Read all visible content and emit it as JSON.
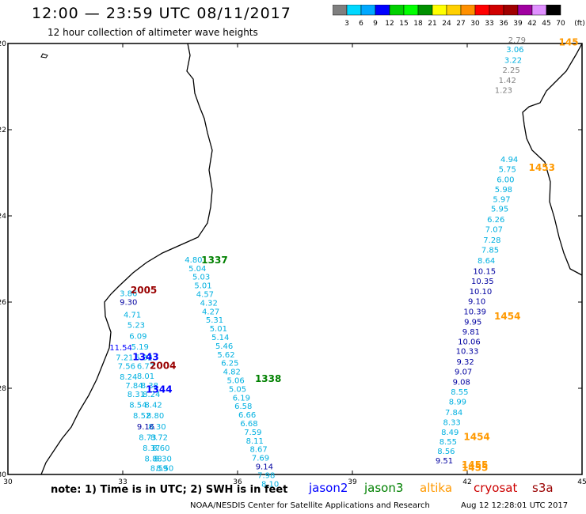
{
  "header": {
    "title": "12:00 — 23:59 UTC 08/11/2017",
    "subtitle": "12 hour collection of altimeter wave heights"
  },
  "colorbar": {
    "labels": [
      "3",
      "6",
      "9",
      "12",
      "15",
      "18",
      "21",
      "24",
      "27",
      "30",
      "33",
      "36",
      "39",
      "42",
      "45",
      "70"
    ],
    "unit": "(ft)",
    "colors": [
      "#7f7f7f",
      "#00d8ff",
      "#00a8ff",
      "#0000ff",
      "#00d000",
      "#00ff00",
      "#009000",
      "#ffff00",
      "#ffd000",
      "#ff9000",
      "#ff0000",
      "#d00000",
      "#a00000",
      "#a000a0",
      "#e090ff",
      "#000000"
    ]
  },
  "footer": {
    "note": "note: 1) Time is in UTC; 2) SWH is in feet",
    "legend": [
      {
        "name": "jason2",
        "color": "#0000ff"
      },
      {
        "name": "jason3",
        "color": "#008000"
      },
      {
        "name": "altika",
        "color": "#ff9900"
      },
      {
        "name": "cryosat",
        "color": "#cc0000"
      },
      {
        "name": "s3a",
        "color": "#990000"
      }
    ],
    "credit": "NOAA/NESDIS Center for Satellite Applications and Research",
    "stamp": "Aug 12 12:28:01 UTC 2017"
  },
  "chart_data": {
    "type": "scatter",
    "title": "12:00 — 23:59 UTC 08/11/2017",
    "xlim": [
      30,
      45
    ],
    "ylim": [
      -30,
      -20
    ],
    "xticks": [
      "30",
      "33",
      "36",
      "39",
      "42",
      "45"
    ],
    "yticks": [
      "-20",
      "-22",
      "-24",
      "-26",
      "-28",
      "-30"
    ],
    "track_labels": [
      {
        "text": "1337",
        "lon": 35.4,
        "lat": -25.1,
        "color": "#008000"
      },
      {
        "text": "1338",
        "lon": 36.8,
        "lat": -27.85,
        "color": "#008000"
      },
      {
        "text": "2005",
        "lon": 33.55,
        "lat": -25.8,
        "color": "#990000"
      },
      {
        "text": "2004",
        "lon": 34.05,
        "lat": -27.55,
        "color": "#990000"
      },
      {
        "text": "1343",
        "lon": 33.6,
        "lat": -27.35,
        "color": "#0000ff"
      },
      {
        "text": "1344",
        "lon": 33.95,
        "lat": -28.1,
        "color": "#0000ff"
      },
      {
        "text": "1453",
        "lon": 43.95,
        "lat": -22.95,
        "color": "#ff9900"
      },
      {
        "text": "1454",
        "lon": 43.05,
        "lat": -26.4,
        "color": "#ff9900"
      },
      {
        "text": "1454",
        "lon": 42.25,
        "lat": -29.2,
        "color": "#ff9900"
      },
      {
        "text": "1455",
        "lon": 42.2,
        "lat": -29.85,
        "color": "#ff9900"
      },
      {
        "text": "1455",
        "lon": 42.2,
        "lat": -29.92,
        "color": "#ff9900"
      },
      {
        "text": "145",
        "lon": 44.65,
        "lat": -20.05,
        "color": "#ff9900"
      }
    ],
    "series": [
      {
        "name": "jason3",
        "color": "#00b0e0",
        "points": [
          {
            "lon": 34.85,
            "lat": -25.08,
            "value": "4.80"
          },
          {
            "lon": 34.95,
            "lat": -25.28,
            "value": "5.04"
          },
          {
            "lon": 35.05,
            "lat": -25.48,
            "value": "5.03"
          },
          {
            "lon": 35.1,
            "lat": -25.68,
            "value": "5.01"
          },
          {
            "lon": 35.15,
            "lat": -25.88,
            "value": "4.57"
          },
          {
            "lon": 35.25,
            "lat": -26.08,
            "value": "4.32"
          },
          {
            "lon": 35.3,
            "lat": -26.28,
            "value": "4.27"
          },
          {
            "lon": 35.4,
            "lat": -26.48,
            "value": "5.31"
          },
          {
            "lon": 35.5,
            "lat": -26.68,
            "value": "5.01"
          },
          {
            "lon": 35.55,
            "lat": -26.88,
            "value": "5.14"
          },
          {
            "lon": 35.65,
            "lat": -27.08,
            "value": "5.46"
          },
          {
            "lon": 35.7,
            "lat": -27.28,
            "value": "5.62"
          },
          {
            "lon": 35.8,
            "lat": -27.48,
            "value": "6.25"
          },
          {
            "lon": 35.85,
            "lat": -27.68,
            "value": "4.82"
          },
          {
            "lon": 35.95,
            "lat": -27.88,
            "value": "5.06"
          },
          {
            "lon": 36.0,
            "lat": -28.08,
            "value": "5.05"
          },
          {
            "lon": 36.1,
            "lat": -28.28,
            "value": "6.19"
          },
          {
            "lon": 36.15,
            "lat": -28.48,
            "value": "6.58"
          },
          {
            "lon": 36.25,
            "lat": -28.68,
            "value": "6.66"
          },
          {
            "lon": 36.3,
            "lat": -28.88,
            "value": "6.68"
          },
          {
            "lon": 36.4,
            "lat": -29.08,
            "value": "7.59"
          },
          {
            "lon": 36.45,
            "lat": -29.28,
            "value": "8.11"
          },
          {
            "lon": 36.55,
            "lat": -29.48,
            "value": "8.67"
          },
          {
            "lon": 36.6,
            "lat": -29.68,
            "value": "7.69"
          },
          {
            "lon": 36.7,
            "lat": -29.88,
            "value": "9.14",
            "color": "#0000a0"
          },
          {
            "lon": 36.75,
            "lat": -30.08,
            "value": "7.98"
          },
          {
            "lon": 36.85,
            "lat": -30.28,
            "value": "8.10"
          }
        ]
      },
      {
        "name": "s3a",
        "color": "#00b0e0",
        "points": [
          {
            "lon": 33.15,
            "lat": -25.86,
            "value": "3.86"
          },
          {
            "lon": 33.15,
            "lat": -26.06,
            "value": "9.30",
            "color": "#0000a0"
          },
          {
            "lon": 33.25,
            "lat": -26.36,
            "value": "4.71"
          },
          {
            "lon": 33.35,
            "lat": -26.6,
            "value": "5.23"
          },
          {
            "lon": 33.4,
            "lat": -26.85,
            "value": "6.09"
          },
          {
            "lon": 33.45,
            "lat": -27.1,
            "value": "5.19"
          },
          {
            "lon": 33.55,
            "lat": -27.35,
            "value": "5.32"
          },
          {
            "lon": 33.6,
            "lat": -27.55,
            "value": "6.77"
          },
          {
            "lon": 33.6,
            "lat": -27.78,
            "value": "8.01"
          },
          {
            "lon": 33.7,
            "lat": -28.0,
            "value": "8.38"
          },
          {
            "lon": 33.75,
            "lat": -28.2,
            "value": "8.24"
          },
          {
            "lon": 33.8,
            "lat": -28.45,
            "value": "8.42"
          },
          {
            "lon": 33.85,
            "lat": -28.7,
            "value": "8.80"
          },
          {
            "lon": 33.9,
            "lat": -28.95,
            "value": "8.30"
          },
          {
            "lon": 33.95,
            "lat": -29.2,
            "value": "8.72"
          },
          {
            "lon": 34.0,
            "lat": -29.45,
            "value": "8.60"
          },
          {
            "lon": 34.05,
            "lat": -29.7,
            "value": "8.30"
          },
          {
            "lon": 34.1,
            "lat": -29.92,
            "value": "8.50"
          }
        ]
      },
      {
        "name": "jason2-west",
        "color": "#00b0e0",
        "points": [
          {
            "lon": 32.95,
            "lat": -27.12,
            "value": "11.54",
            "color": "#0000ff"
          },
          {
            "lon": 33.05,
            "lat": -27.35,
            "value": "7.21"
          },
          {
            "lon": 33.1,
            "lat": -27.55,
            "value": "7.56"
          },
          {
            "lon": 33.15,
            "lat": -27.8,
            "value": "8.24"
          },
          {
            "lon": 33.3,
            "lat": -28.0,
            "value": "7.84"
          },
          {
            "lon": 33.35,
            "lat": -28.2,
            "value": "8.31"
          },
          {
            "lon": 33.4,
            "lat": -28.45,
            "value": "8.54"
          },
          {
            "lon": 33.5,
            "lat": -28.7,
            "value": "8.52"
          },
          {
            "lon": 33.6,
            "lat": -28.95,
            "value": "9.16",
            "color": "#0000a0"
          },
          {
            "lon": 33.65,
            "lat": -29.2,
            "value": "8.73"
          },
          {
            "lon": 33.75,
            "lat": -29.45,
            "value": "8.37"
          },
          {
            "lon": 33.8,
            "lat": -29.7,
            "value": "8.88"
          },
          {
            "lon": 33.95,
            "lat": -29.92,
            "value": "8.59"
          }
        ]
      },
      {
        "name": "altika-north",
        "color": "#00b0e0",
        "points": [
          {
            "lon": 43.25,
            "lat": -20.2,
            "value": "3.06"
          },
          {
            "lon": 43.2,
            "lat": -20.45,
            "value": "3.22"
          },
          {
            "lon": 43.1,
            "lat": -22.75,
            "value": "4.94"
          },
          {
            "lon": 43.05,
            "lat": -22.98,
            "value": "5.75"
          },
          {
            "lon": 43.0,
            "lat": -23.22,
            "value": "6.00"
          },
          {
            "lon": 42.95,
            "lat": -23.45,
            "value": "5.98"
          },
          {
            "lon": 42.9,
            "lat": -23.68,
            "value": "5.97"
          },
          {
            "lon": 42.85,
            "lat": -23.9,
            "value": "5.95"
          },
          {
            "lon": 42.75,
            "lat": -24.15,
            "value": "6.26"
          },
          {
            "lon": 42.7,
            "lat": -24.38,
            "value": "7.07"
          },
          {
            "lon": 42.65,
            "lat": -24.62,
            "value": "7.28"
          },
          {
            "lon": 42.6,
            "lat": -24.85,
            "value": "7.85"
          },
          {
            "lon": 42.5,
            "lat": -25.1,
            "value": "8.64"
          }
        ]
      },
      {
        "name": "altika-grey",
        "color": "#7f7f7f",
        "points": [
          {
            "lon": 43.3,
            "lat": -19.98,
            "value": "2.79"
          },
          {
            "lon": 43.15,
            "lat": -20.68,
            "value": "2.25"
          },
          {
            "lon": 43.05,
            "lat": -20.92,
            "value": "1.42"
          },
          {
            "lon": 42.95,
            "lat": -21.15,
            "value": "1.23"
          }
        ]
      },
      {
        "name": "altika-south",
        "color": "#0000a0",
        "points": [
          {
            "lon": 42.45,
            "lat": -25.35,
            "value": "10.15"
          },
          {
            "lon": 42.4,
            "lat": -25.58,
            "value": "10.35"
          },
          {
            "lon": 42.35,
            "lat": -25.82,
            "value": "10.10"
          },
          {
            "lon": 42.25,
            "lat": -26.05,
            "value": "9.10"
          },
          {
            "lon": 42.2,
            "lat": -26.28,
            "value": "10.39"
          },
          {
            "lon": 42.15,
            "lat": -26.52,
            "value": "9.95"
          },
          {
            "lon": 42.1,
            "lat": -26.75,
            "value": "9.81"
          },
          {
            "lon": 42.05,
            "lat": -26.98,
            "value": "10.06"
          },
          {
            "lon": 42.0,
            "lat": -27.2,
            "value": "10.33"
          },
          {
            "lon": 41.95,
            "lat": -27.45,
            "value": "9.32"
          },
          {
            "lon": 41.9,
            "lat": -27.68,
            "value": "9.07"
          },
          {
            "lon": 41.85,
            "lat": -27.92,
            "value": "9.08"
          },
          {
            "lon": 41.8,
            "lat": -28.15,
            "value": "8.55",
            "color": "#00b0e0"
          },
          {
            "lon": 41.75,
            "lat": -28.38,
            "value": "8.99",
            "color": "#00b0e0"
          },
          {
            "lon": 41.65,
            "lat": -28.62,
            "value": "7.84",
            "color": "#00b0e0"
          },
          {
            "lon": 41.6,
            "lat": -28.85,
            "value": "8.33",
            "color": "#00b0e0"
          },
          {
            "lon": 41.55,
            "lat": -29.08,
            "value": "8.49",
            "color": "#00b0e0"
          },
          {
            "lon": 41.5,
            "lat": -29.3,
            "value": "8.55",
            "color": "#00b0e0"
          },
          {
            "lon": 41.45,
            "lat": -29.52,
            "value": "8.56",
            "color": "#00b0e0"
          },
          {
            "lon": 41.4,
            "lat": -29.74,
            "value": "9.51"
          }
        ]
      }
    ]
  }
}
